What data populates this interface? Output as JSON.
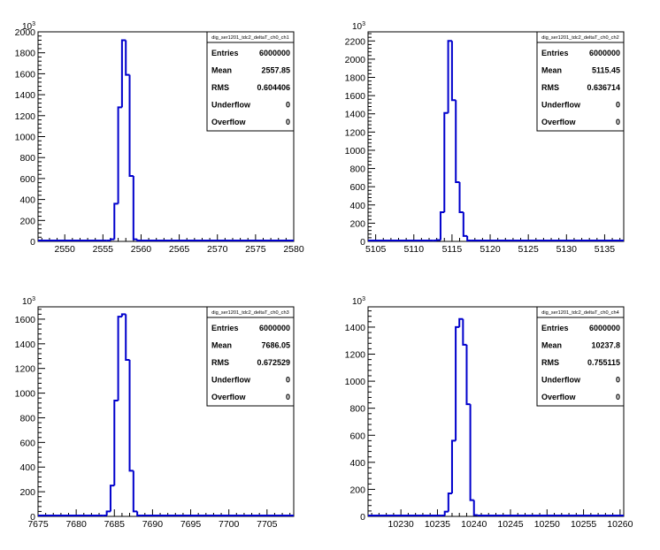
{
  "chart_data": [
    {
      "type": "histogram",
      "title": "",
      "xlabel": "",
      "ylabel": "",
      "y_exponent_base": "10",
      "y_exponent_power": "3",
      "xlim": [
        2546.5,
        2580
      ],
      "ylim": [
        0,
        2000
      ],
      "x_ticks": [
        "2550",
        "2555",
        "2560",
        "2565",
        "2570",
        "2575",
        "2580"
      ],
      "y_ticks": [
        "0",
        "200",
        "400",
        "600",
        "800",
        "1000",
        "1200",
        "1400",
        "1600",
        "1800",
        "2000"
      ],
      "bin_edges": [
        2555,
        2555.5,
        2556,
        2556.5,
        2557,
        2557.5,
        2558,
        2558.5,
        2559,
        2559.5,
        2560
      ],
      "values": [
        0,
        1,
        20,
        360,
        1280,
        1920,
        1590,
        625,
        20,
        1
      ],
      "stats": {
        "name": "dig_ser1201_tdc2_deltaT_ch0_ch1",
        "rows": [
          {
            "label": "Entries",
            "value": "6000000"
          },
          {
            "label": "Mean",
            "value": "2557.85"
          },
          {
            "label": "RMS",
            "value": "0.604406"
          },
          {
            "label": "Underflow",
            "value": "0"
          },
          {
            "label": "Overflow",
            "value": "0"
          }
        ]
      },
      "line_color": "#0000cc"
    },
    {
      "type": "histogram",
      "title": "",
      "xlabel": "",
      "ylabel": "",
      "y_exponent_base": "10",
      "y_exponent_power": "3",
      "xlim": [
        5104,
        5137.5
      ],
      "ylim": [
        0,
        2300
      ],
      "x_ticks": [
        "5105",
        "5110",
        "5115",
        "5120",
        "5125",
        "5130",
        "5135"
      ],
      "y_ticks": [
        "0",
        "200",
        "400",
        "600",
        "800",
        "1000",
        "1200",
        "1400",
        "1600",
        "1800",
        "2000",
        "2200"
      ],
      "bin_edges": [
        5112.5,
        5113,
        5113.5,
        5114,
        5114.5,
        5115,
        5115.5,
        5116,
        5116.5,
        5117,
        5117.5
      ],
      "values": [
        0,
        15,
        320,
        1410,
        2200,
        1550,
        650,
        320,
        60,
        5
      ],
      "stats": {
        "name": "dig_ser1201_tdc2_deltaT_ch0_ch2",
        "rows": [
          {
            "label": "Entries",
            "value": "6000000"
          },
          {
            "label": "Mean",
            "value": "5115.45"
          },
          {
            "label": "RMS",
            "value": "0.636714"
          },
          {
            "label": "Underflow",
            "value": "0"
          },
          {
            "label": "Overflow",
            "value": "0"
          }
        ]
      },
      "line_color": "#0000cc"
    },
    {
      "type": "histogram",
      "title": "",
      "xlabel": "",
      "ylabel": "",
      "y_exponent_base": "10",
      "y_exponent_power": "3",
      "xlim": [
        7675,
        7708.5
      ],
      "ylim": [
        0,
        1700
      ],
      "x_ticks": [
        "7675",
        "7680",
        "7685",
        "7690",
        "7695",
        "7700",
        "7705"
      ],
      "y_ticks": [
        "0",
        "200",
        "400",
        "600",
        "800",
        "1000",
        "1200",
        "1400",
        "1600"
      ],
      "bin_edges": [
        7683.5,
        7684,
        7684.5,
        7685,
        7685.5,
        7686,
        7686.5,
        7687,
        7687.5,
        7688,
        7688.5
      ],
      "values": [
        0,
        40,
        250,
        940,
        1620,
        1640,
        1270,
        370,
        40,
        2
      ],
      "stats": {
        "name": "dig_ser1201_tdc2_deltaT_ch0_ch3",
        "rows": [
          {
            "label": "Entries",
            "value": "6000000"
          },
          {
            "label": "Mean",
            "value": "7686.05"
          },
          {
            "label": "RMS",
            "value": "0.672529"
          },
          {
            "label": "Underflow",
            "value": "0"
          },
          {
            "label": "Overflow",
            "value": "0"
          }
        ]
      },
      "line_color": "#0000cc"
    },
    {
      "type": "histogram",
      "title": "",
      "xlabel": "",
      "ylabel": "",
      "y_exponent_base": "10",
      "y_exponent_power": "3",
      "xlim": [
        10225.5,
        10260.5
      ],
      "ylim": [
        0,
        1550
      ],
      "x_ticks": [
        "10230",
        "10235",
        "10240",
        "10245",
        "10250",
        "10255",
        "10260"
      ],
      "y_ticks": [
        "0",
        "200",
        "400",
        "600",
        "800",
        "1000",
        "1200",
        "1400"
      ],
      "bin_edges": [
        10235.5,
        10236,
        10236.5,
        10237,
        10237.5,
        10238,
        10238.5,
        10239,
        10239.5,
        10240,
        10240.5
      ],
      "values": [
        0,
        35,
        170,
        560,
        1400,
        1460,
        1270,
        830,
        120,
        10
      ],
      "stats": {
        "name": "dig_ser1201_tdc2_deltaT_ch0_ch4",
        "rows": [
          {
            "label": "Entries",
            "value": "6000000"
          },
          {
            "label": "Mean",
            "value": "10237.8"
          },
          {
            "label": "RMS",
            "value": "0.755115"
          },
          {
            "label": "Underflow",
            "value": "0"
          },
          {
            "label": "Overflow",
            "value": "0"
          }
        ]
      },
      "line_color": "#0000cc"
    }
  ]
}
